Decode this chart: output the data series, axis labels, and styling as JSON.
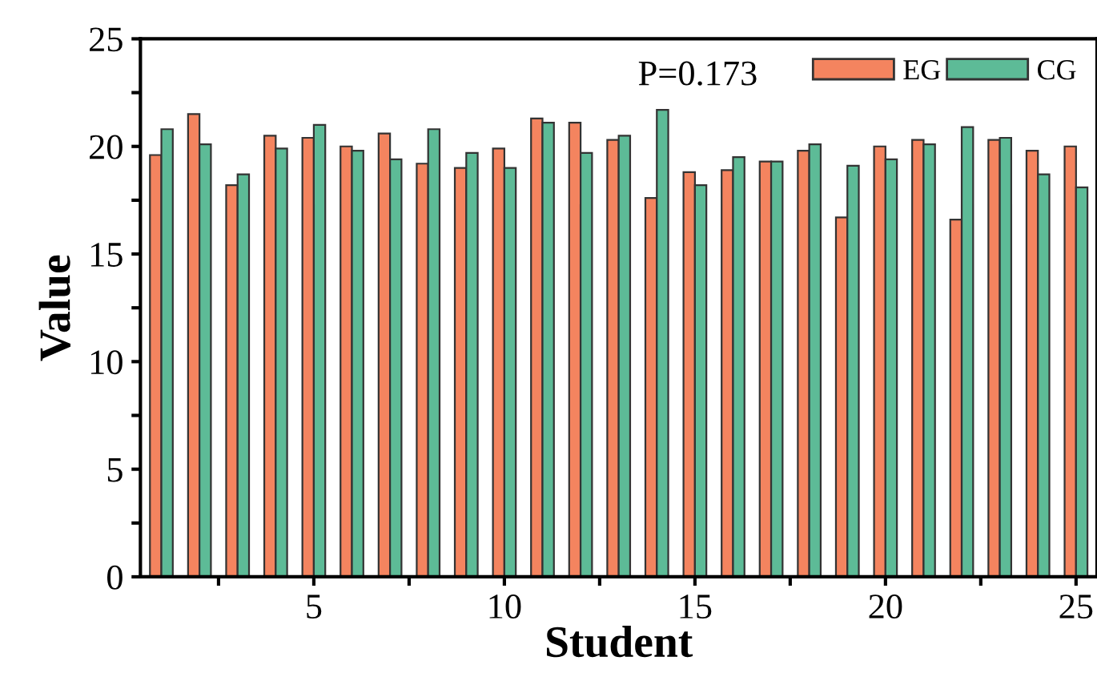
{
  "chart_data": {
    "type": "bar",
    "x": [
      1,
      2,
      3,
      4,
      5,
      6,
      7,
      8,
      9,
      10,
      11,
      12,
      13,
      14,
      15,
      16,
      17,
      18,
      19,
      20,
      21,
      22,
      23,
      24,
      25
    ],
    "series": [
      {
        "name": "EG",
        "color": "#f4845f",
        "values": [
          19.6,
          21.5,
          18.2,
          20.5,
          20.4,
          20.0,
          20.6,
          19.2,
          19.0,
          19.9,
          21.3,
          21.1,
          20.3,
          17.6,
          18.8,
          18.9,
          19.3,
          19.8,
          16.7,
          20.0,
          20.3,
          16.6,
          20.3,
          19.8,
          20.0
        ]
      },
      {
        "name": "CG",
        "color": "#5dbb97",
        "values": [
          20.8,
          20.1,
          18.7,
          19.9,
          21.0,
          19.8,
          19.4,
          20.8,
          19.7,
          19.0,
          21.1,
          19.7,
          20.5,
          21.7,
          18.2,
          19.5,
          19.3,
          20.1,
          19.1,
          19.4,
          20.1,
          20.9,
          20.4,
          18.7,
          18.1
        ]
      }
    ],
    "xlabel": "Student",
    "ylabel": "Value",
    "xlim": [
      0.45,
      25.55
    ],
    "xticks": [
      {
        "value": 2.5,
        "label": null
      },
      5,
      {
        "value": 7.5,
        "label": null
      },
      10,
      {
        "value": 12.5,
        "label": null
      },
      15,
      {
        "value": 17.5,
        "label": null
      },
      20,
      {
        "value": 22.5,
        "label": null
      },
      25
    ],
    "ylim": [
      0,
      25
    ],
    "yticks": [
      0,
      {
        "value": 2.5,
        "label": null
      },
      5,
      {
        "value": 7.5,
        "label": null
      },
      10,
      {
        "value": 12.5,
        "label": null
      },
      15,
      {
        "value": 17.5,
        "label": null
      },
      20,
      {
        "value": 22.5,
        "label": null
      },
      25
    ],
    "annotations": [
      "P=0.173"
    ],
    "legend": "top right",
    "grid": false
  }
}
